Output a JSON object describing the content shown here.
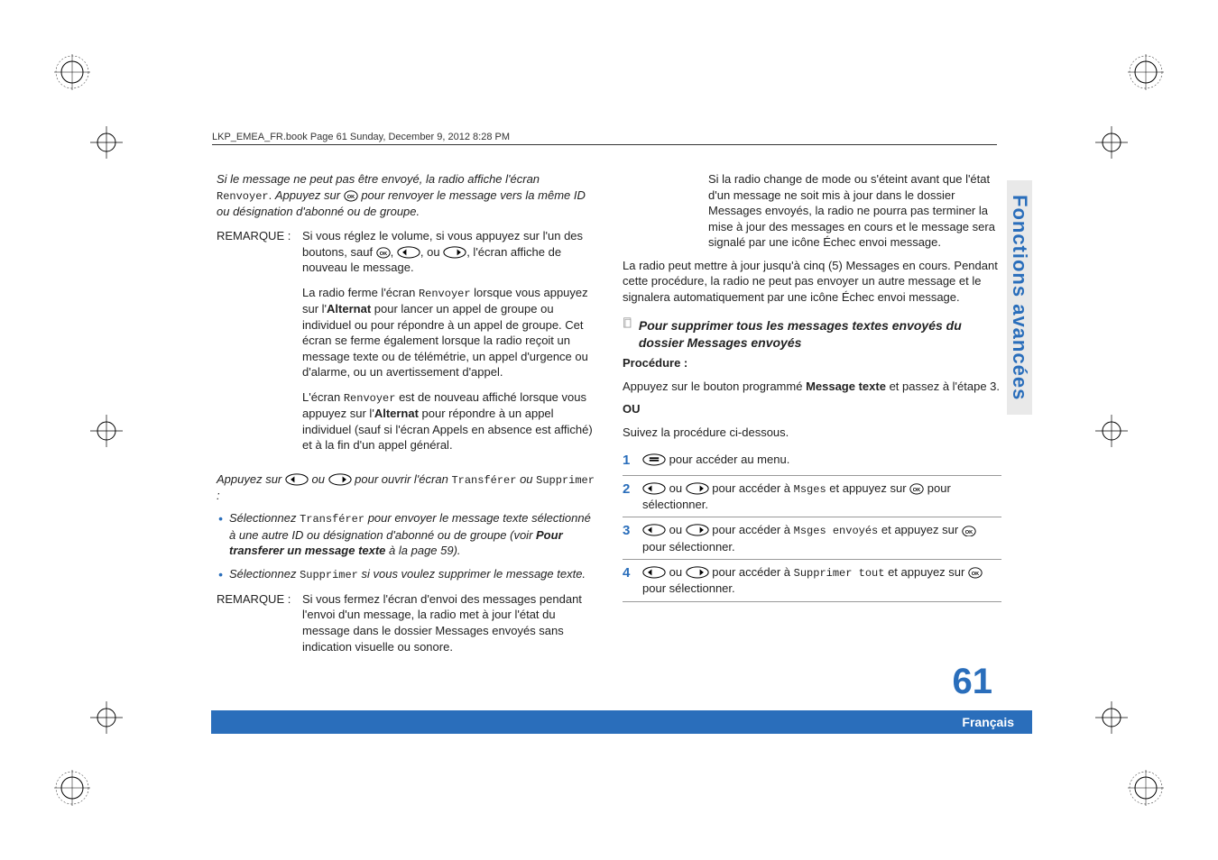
{
  "header": "LKP_EMEA_FR.book  Page 61  Sunday, December 9, 2012  8:28 PM",
  "col1": {
    "p1a": "Si le message ne peut pas être envoyé, la radio affiche l'écran ",
    "p1b": "Renvoyer",
    "p1c": ". ",
    "p1d": "Appuyez sur ",
    "p1e": " pour renvoyer le message vers la même ID ou désignation d'abonné ou de groupe.",
    "rem1_label": "REMARQUE :",
    "rem1_p1a": "Si vous réglez le volume, si vous appuyez sur l'un des boutons, sauf ",
    "rem1_p1b": ", ",
    "rem1_p1c": ", ou ",
    "rem1_p1d": ", l'écran affiche de nouveau le message.",
    "rem1_p2a": "La radio ferme l'écran ",
    "rem1_p2b": "Renvoyer",
    "rem1_p2c": " lorsque vous appuyez sur l'",
    "rem1_p2d": "Alternat",
    "rem1_p2e": " pour lancer un appel de groupe ou individuel ou pour répondre à un appel de groupe. Cet écran se ferme également lorsque la radio reçoit un message texte ou de télémétrie, un appel d'urgence ou d'alarme, ou un avertissement d'appel.",
    "rem1_p3a": "L'écran ",
    "rem1_p3b": "Renvoyer",
    "rem1_p3c": " est de nouveau affiché lorsque vous appuyez sur l'",
    "rem1_p3d": "Alternat",
    "rem1_p3e": " pour répondre à un appel individuel (sauf si l'écran Appels en absence est affiché) et à la fin d'un appel général.",
    "p2a": "Appuyez sur ",
    "p2b": " ou ",
    "p2c": " pour ouvrir l'écran ",
    "p2d": "Transférer",
    "p2e": " ou ",
    "p2f": "Supprimer",
    "p2g": " :",
    "b1a": "Sélectionnez ",
    "b1b": "Transférer",
    "b1c": " pour envoyer le message texte sélectionné à une autre ID ou désignation d'abonné ou de groupe (voir ",
    "b1d": "Pour transferer un message texte",
    "b1e": " à la page 59).",
    "b2a": "Sélectionnez ",
    "b2b": "Supprimer",
    "b2c": " si vous voulez supprimer le message texte.",
    "rem2_label": "REMARQUE :",
    "rem2_body": "Si vous fermez l'écran d'envoi des messages pendant l'envoi d'un message, la radio met à jour l'état du message dans le dossier Messages envoyés sans indication visuelle ou sonore."
  },
  "col2": {
    "p1": "Si la radio change de mode ou s'éteint avant que l'état d'un message ne soit mis à jour dans le dossier Messages envoyés, la radio ne pourra pas terminer la mise à jour des messages en cours et le message sera signalé par une icône Échec envoi message.",
    "p2": "La radio peut mettre à jour jusqu'à cinq (5) Messages en cours. Pendant cette procédure, la radio ne peut pas envoyer un autre message et le signalera automatiquement par une icône Échec envoi message.",
    "subhead": "Pour supprimer tous les messages textes envoyés du dossier Messages envoyés",
    "proc_label": "Procédure :",
    "proc_p1a": "Appuyez sur le bouton programmé ",
    "proc_p1b": "Message texte",
    "proc_p1c": " et passez à l'étape 3.",
    "ou": "OU",
    "proc_p2": "Suivez la procédure ci-dessous.",
    "s1_num": "1",
    "s1_body": " pour accéder au menu.",
    "s2_num": "2",
    "s2_a": " ou ",
    "s2_b": " pour accéder à ",
    "s2_c": "Msges",
    "s2_d": " et appuyez sur ",
    "s2_e": " pour sélectionner.",
    "s3_num": "3",
    "s3_a": " ou ",
    "s3_b": " pour accéder à ",
    "s3_c": "Msges envoyés",
    "s3_d": " et appuyez sur ",
    "s3_e": " pour sélectionner.",
    "s4_num": "4",
    "s4_a": " ou ",
    "s4_b": " pour accéder à ",
    "s4_c": "Supprimer tout",
    "s4_d": " et appuyez sur ",
    "s4_e": " pour sélectionner."
  },
  "side_tab": "Fonctions avancées",
  "page_number": "61",
  "lang": "Français",
  "svg": {
    "ok": "<svg viewBox='0 0 20 16'><ellipse cx='10' cy='8' rx='9' ry='7' fill='none' stroke='#000' stroke-width='1.2'/><text x='10' y='11' font-size='7' text-anchor='middle' font-family='Arial' font-weight='bold'>OK</text></svg>",
    "left": "<svg viewBox='0 0 30 16'><ellipse cx='15' cy='8' rx='14' ry='7' fill='none' stroke='#000' stroke-width='1.2'/><path d='M12 4 L7 8 L12 12 Z' fill='#000'/></svg>",
    "right": "<svg viewBox='0 0 30 16'><ellipse cx='15' cy='8' rx='14' ry='7' fill='none' stroke='#000' stroke-width='1.2'/><path d='M18 4 L23 8 L18 12 Z' fill='#000'/></svg>",
    "menu": "<svg viewBox='0 0 30 16'><ellipse cx='15' cy='8' rx='14' ry='7' fill='none' stroke='#000' stroke-width='1.2'/><rect x='9' y='5' width='12' height='2' fill='#000'/><rect x='9' y='8' width='12' height='2' fill='#000'/></svg>",
    "doc": "<svg viewBox='0 0 16 18'><rect x='2' y='1' width='10' height='14' fill='none' stroke='#999' stroke-width='1'/><rect x='4' y='3' width='8' height='12' fill='none' stroke='#999' stroke-width='1'/></svg>"
  }
}
